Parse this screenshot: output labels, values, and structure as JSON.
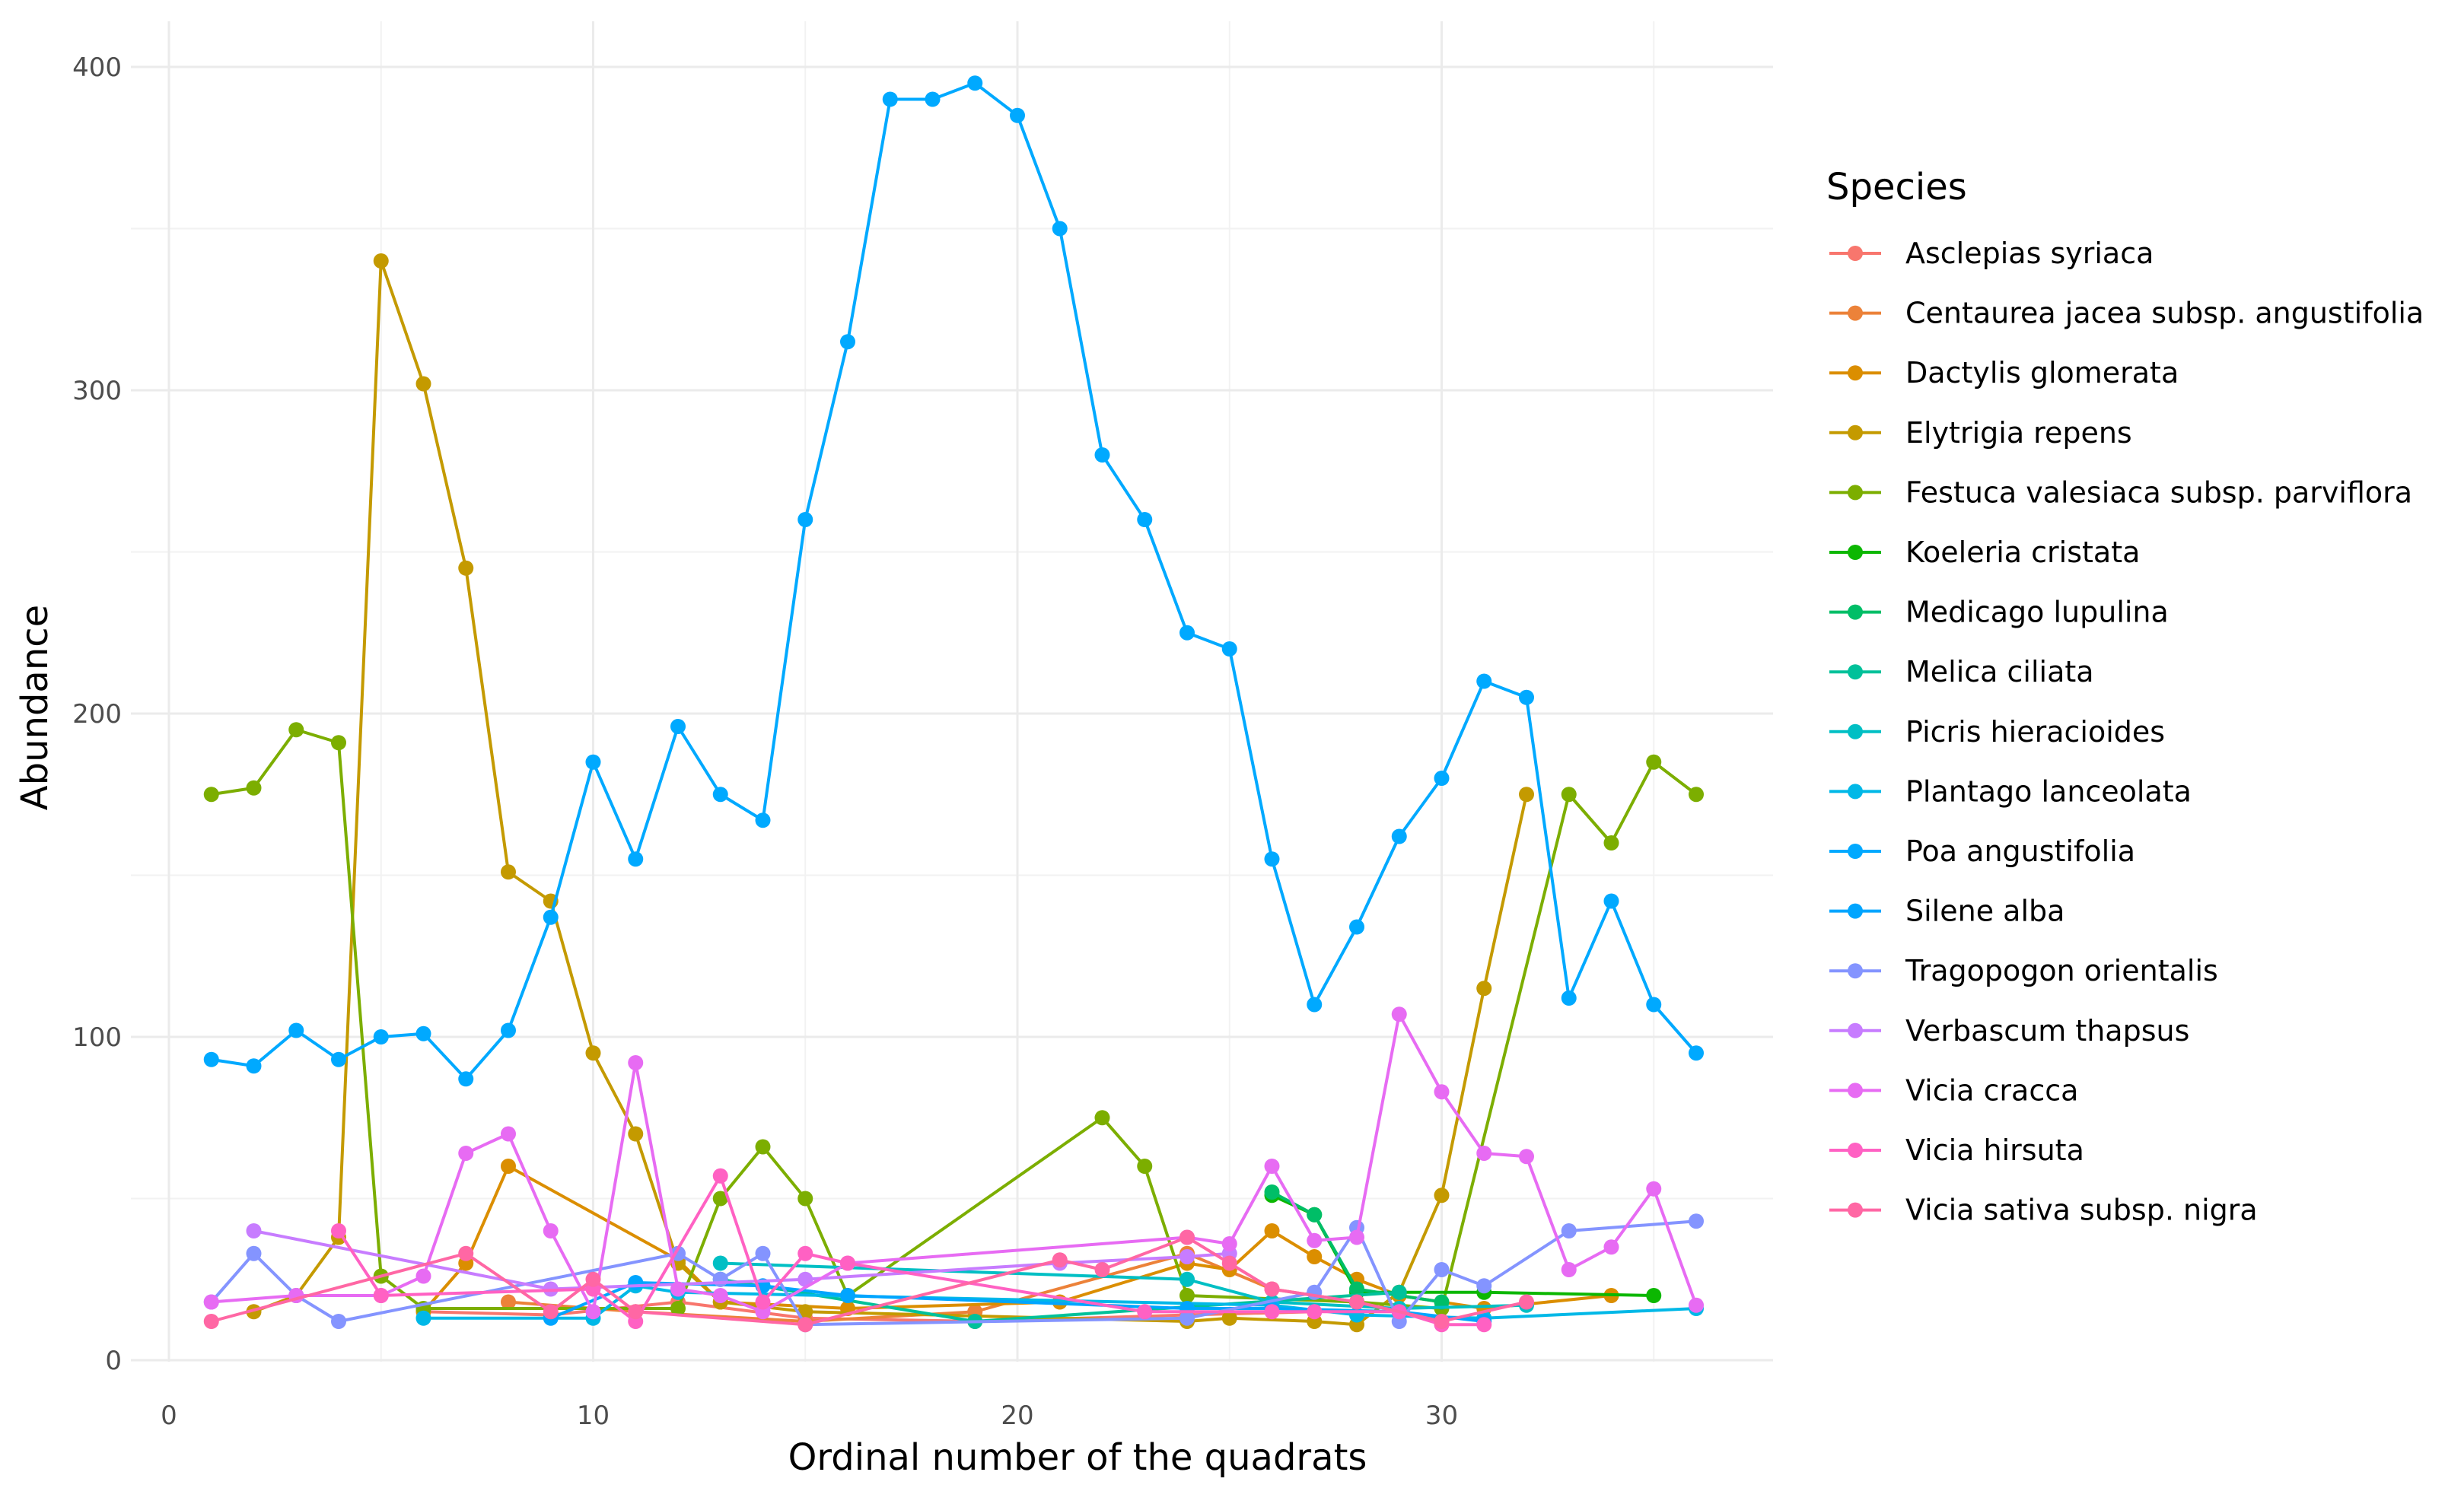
{
  "chart_data": {
    "type": "line",
    "xlabel": "Ordinal number of the quadrats",
    "ylabel": "Abundance",
    "xlim": [
      0,
      38
    ],
    "ylim": [
      0,
      410
    ],
    "x_ticks": [
      0,
      10,
      20,
      30
    ],
    "y_ticks": [
      0,
      100,
      200,
      300,
      400
    ],
    "grid": true,
    "legend_title": "Species",
    "legend_position": "right",
    "series": [
      {
        "name": "Asclepias syriaca",
        "color": "#F8766D",
        "points": [
          [
            6,
            15
          ],
          [
            9,
            14
          ],
          [
            12,
            18
          ],
          [
            15,
            13
          ],
          [
            19,
            12
          ],
          [
            24,
            14
          ],
          [
            27,
            15
          ]
        ]
      },
      {
        "name": "Centaurea jacea subsp. angustifolia",
        "color": "#EC8239",
        "points": [
          [
            8,
            18
          ],
          [
            11,
            15
          ],
          [
            15,
            12
          ],
          [
            19,
            15
          ],
          [
            24,
            33
          ],
          [
            26,
            22
          ],
          [
            28,
            18
          ],
          [
            30,
            12
          ]
        ]
      },
      {
        "name": "Dactylis glomerata",
        "color": "#DB8E00",
        "points": [
          [
            6,
            15
          ],
          [
            7,
            30
          ],
          [
            8,
            60
          ],
          [
            12,
            31
          ],
          [
            13,
            18
          ],
          [
            16,
            16
          ],
          [
            21,
            18
          ],
          [
            24,
            30
          ],
          [
            25,
            28
          ],
          [
            26,
            40
          ],
          [
            27,
            32
          ],
          [
            28,
            25
          ],
          [
            29,
            20
          ],
          [
            31,
            16
          ],
          [
            34,
            20
          ]
        ]
      },
      {
        "name": "Elytrigia repens",
        "color": "#C49A00",
        "points": [
          [
            2,
            15
          ],
          [
            3,
            20
          ],
          [
            4,
            38
          ],
          [
            5,
            340
          ],
          [
            6,
            302
          ],
          [
            7,
            245
          ],
          [
            8,
            151
          ],
          [
            9,
            142
          ],
          [
            10,
            95
          ],
          [
            11,
            70
          ],
          [
            12,
            30
          ],
          [
            13,
            18
          ],
          [
            15,
            15
          ],
          [
            24,
            12
          ],
          [
            25,
            13
          ],
          [
            27,
            12
          ],
          [
            28,
            11
          ],
          [
            29,
            21
          ],
          [
            30,
            51
          ],
          [
            31,
            115
          ],
          [
            32,
            175
          ]
        ]
      },
      {
        "name": "Festuca valesiaca subsp. parviflora",
        "color": "#7CAE00",
        "points": [
          [
            1,
            175
          ],
          [
            2,
            177
          ],
          [
            3,
            195
          ],
          [
            4,
            191
          ],
          [
            5,
            26
          ],
          [
            6,
            16
          ],
          [
            12,
            16
          ],
          [
            13,
            50
          ],
          [
            14,
            66
          ],
          [
            15,
            50
          ],
          [
            16,
            20
          ],
          [
            22,
            75
          ],
          [
            23,
            60
          ],
          [
            24,
            20
          ],
          [
            28,
            18
          ],
          [
            30,
            16
          ],
          [
            33,
            175
          ],
          [
            34,
            160
          ],
          [
            35,
            185
          ],
          [
            36,
            175
          ]
        ]
      },
      {
        "name": "Koeleria cristata",
        "color": "#0CB702",
        "points": [
          [
            26,
            51
          ],
          [
            27,
            45
          ],
          [
            28,
            21
          ],
          [
            31,
            21
          ],
          [
            35,
            20
          ]
        ]
      },
      {
        "name": "Medicago lupulina",
        "color": "#00BE67",
        "points": [
          [
            26,
            52
          ],
          [
            27,
            45
          ],
          [
            28,
            22
          ],
          [
            30,
            18
          ]
        ]
      },
      {
        "name": "Melica ciliata",
        "color": "#00C19A",
        "points": [
          [
            13,
            25
          ],
          [
            19,
            12
          ],
          [
            29,
            21
          ]
        ]
      },
      {
        "name": "Picris hieracioides",
        "color": "#00BFC4",
        "points": [
          [
            13,
            30
          ],
          [
            24,
            25
          ],
          [
            26,
            18
          ],
          [
            29,
            16
          ],
          [
            32,
            17
          ]
        ]
      },
      {
        "name": "Plantago lanceolata",
        "color": "#00B8E7",
        "points": [
          [
            6,
            13
          ],
          [
            10,
            13
          ],
          [
            11,
            23
          ],
          [
            12,
            21
          ],
          [
            26,
            17
          ],
          [
            28,
            14
          ],
          [
            31,
            13
          ],
          [
            36,
            16
          ]
        ]
      },
      {
        "name": "Poa angustifolia",
        "color": "#00A9FF",
        "points": [
          [
            1,
            93
          ],
          [
            2,
            91
          ],
          [
            3,
            102
          ],
          [
            4,
            93
          ],
          [
            5,
            100
          ],
          [
            6,
            101
          ],
          [
            7,
            87
          ],
          [
            8,
            102
          ],
          [
            9,
            137
          ],
          [
            10,
            185
          ],
          [
            11,
            155
          ],
          [
            12,
            196
          ],
          [
            13,
            175
          ],
          [
            14,
            167
          ],
          [
            15,
            260
          ],
          [
            16,
            315
          ],
          [
            17,
            390
          ],
          [
            18,
            390
          ],
          [
            19,
            395
          ],
          [
            20,
            385
          ],
          [
            21,
            350
          ],
          [
            22,
            280
          ],
          [
            23,
            260
          ],
          [
            24,
            225
          ],
          [
            25,
            220
          ],
          [
            26,
            155
          ],
          [
            27,
            110
          ],
          [
            28,
            134
          ],
          [
            29,
            162
          ],
          [
            30,
            180
          ],
          [
            31,
            210
          ],
          [
            32,
            205
          ],
          [
            33,
            112
          ],
          [
            34,
            142
          ],
          [
            35,
            110
          ],
          [
            36,
            95
          ]
        ]
      },
      {
        "name": "Silene alba",
        "color": "#00A5FF",
        "points": [
          [
            9,
            13
          ],
          [
            11,
            24
          ],
          [
            14,
            23
          ],
          [
            16,
            20
          ],
          [
            24,
            16
          ],
          [
            26,
            16
          ],
          [
            29,
            15
          ],
          [
            31,
            12
          ]
        ]
      },
      {
        "name": "Tragopogon orientalis",
        "color": "#8494FF",
        "points": [
          [
            1,
            18
          ],
          [
            2,
            33
          ],
          [
            3,
            20
          ],
          [
            4,
            12
          ],
          [
            12,
            33
          ],
          [
            13,
            25
          ],
          [
            14,
            33
          ],
          [
            15,
            11
          ],
          [
            24,
            13
          ],
          [
            27,
            21
          ],
          [
            28,
            41
          ],
          [
            29,
            12
          ],
          [
            30,
            28
          ],
          [
            31,
            23
          ],
          [
            33,
            40
          ],
          [
            36,
            43
          ]
        ]
      },
      {
        "name": "Verbascum thapsus",
        "color": "#C77CFF",
        "points": [
          [
            2,
            40
          ],
          [
            9,
            22
          ],
          [
            15,
            25
          ],
          [
            21,
            30
          ],
          [
            24,
            32
          ],
          [
            25,
            33
          ]
        ]
      },
      {
        "name": "Vicia cracca",
        "color": "#E76BF3",
        "points": [
          [
            1,
            18
          ],
          [
            3,
            20
          ],
          [
            5,
            20
          ],
          [
            6,
            26
          ],
          [
            7,
            64
          ],
          [
            8,
            70
          ],
          [
            9,
            40
          ],
          [
            10,
            15
          ],
          [
            11,
            92
          ],
          [
            12,
            22
          ],
          [
            13,
            20
          ],
          [
            14,
            15
          ],
          [
            16,
            30
          ],
          [
            24,
            38
          ],
          [
            25,
            36
          ],
          [
            26,
            60
          ],
          [
            27,
            37
          ],
          [
            28,
            38
          ],
          [
            29,
            107
          ],
          [
            30,
            83
          ],
          [
            31,
            64
          ],
          [
            32,
            63
          ],
          [
            33,
            28
          ],
          [
            34,
            35
          ],
          [
            35,
            53
          ],
          [
            36,
            17
          ]
        ]
      },
      {
        "name": "Vicia hirsuta",
        "color": "#FF61C3",
        "points": [
          [
            4,
            40
          ],
          [
            5,
            20
          ],
          [
            10,
            22
          ],
          [
            11,
            12
          ],
          [
            13,
            57
          ],
          [
            14,
            18
          ],
          [
            15,
            33
          ],
          [
            16,
            30
          ],
          [
            23,
            15
          ],
          [
            26,
            15
          ],
          [
            27,
            15
          ],
          [
            29,
            15
          ],
          [
            30,
            11
          ],
          [
            31,
            11
          ]
        ]
      },
      {
        "name": "Vicia sativa subsp. nigra",
        "color": "#FF67A4",
        "points": [
          [
            1,
            12
          ],
          [
            7,
            33
          ],
          [
            9,
            15
          ],
          [
            10,
            25
          ],
          [
            11,
            15
          ],
          [
            15,
            11
          ],
          [
            21,
            31
          ],
          [
            22,
            28
          ],
          [
            24,
            38
          ],
          [
            25,
            30
          ],
          [
            26,
            22
          ],
          [
            28,
            18
          ],
          [
            30,
            12
          ],
          [
            32,
            18
          ]
        ]
      }
    ]
  }
}
